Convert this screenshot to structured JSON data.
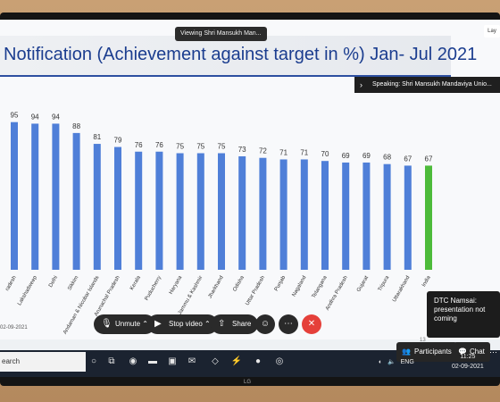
{
  "slide": {
    "title": "Notification (Achievement against target in %) Jan- Jul 2021",
    "date_left": "02-09-2021",
    "side_number": "13"
  },
  "zoom": {
    "viewing": "Viewing Shri Mansukh Man...",
    "speaking": "Speaking: Shri Mansukh Mandaviya Unio...",
    "layout_label": "Lay",
    "unmute_label": "Unmute",
    "stop_video_label": "Stop video",
    "share_label": "Share",
    "participants_label": "Participants",
    "chat_label": "Chat",
    "chat_message_sender": "DTC Namsai:",
    "chat_message_text": "presentation not coming"
  },
  "taskbar": {
    "search_placeholder": "earch",
    "lang": "ENG",
    "time": "11:25",
    "date": "02-09-2021"
  },
  "logo": "LG",
  "icons": {
    "mic": "mic-icon",
    "video": "video-icon",
    "share": "share-icon",
    "emoji": "emoji-icon",
    "more": "more-icon",
    "end": "end-call-icon"
  },
  "colors": {
    "bar": "#4f7fd8",
    "highlight": "#4dbb3a",
    "title": "#1b3d8f"
  },
  "chart_data": {
    "type": "bar",
    "categories": [
      "radesh",
      "Lakshadweep",
      "Delhi",
      "Sikkim",
      "Andaman & Nicobar Islands",
      "Arunachal Pradesh",
      "Kerala",
      "Puducherry",
      "Haryana",
      "Jammu & Kashmir",
      "Jharkhand",
      "Odisha",
      "Uttar Pradesh",
      "Punjab",
      "Nagaland",
      "Telangana",
      "Andhra Pradesh",
      "Gujarat",
      "Tripura",
      "Uttarakhand",
      "India"
    ],
    "values": [
      95,
      94,
      94,
      88,
      81,
      79,
      76,
      76,
      75,
      75,
      75,
      73,
      72,
      71,
      71,
      70,
      69,
      69,
      68,
      67,
      67
    ],
    "labels": [
      "95",
      "94",
      "94",
      "88",
      "81",
      "79",
      "76",
      "76",
      "75",
      "75",
      "75",
      "73",
      "72",
      "71",
      "71",
      "70",
      "69",
      "69",
      "68",
      "67",
      "67"
    ],
    "highlight": "India",
    "ylim": [
      0,
      100
    ]
  }
}
